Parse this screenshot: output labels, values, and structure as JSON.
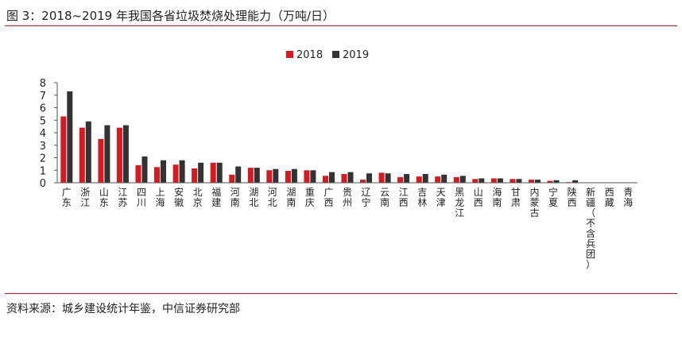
{
  "header": {
    "title": "图 3：2018~2019 年我国各省垃圾焚烧处理能力（万吨/日）"
  },
  "footer": {
    "source": "资料来源：城乡建设统计年鉴，中信证券研究部"
  },
  "colors": {
    "s2018": "#d61a22",
    "s2019": "#333333",
    "rule": "#b5121b"
  },
  "chart_data": {
    "type": "bar",
    "categories": [
      "广东",
      "浙江",
      "山东",
      "江苏",
      "四川",
      "上海",
      "安徽",
      "北京",
      "福建",
      "河南",
      "湖北",
      "河北",
      "湖南",
      "重庆",
      "广西",
      "贵州",
      "辽宁",
      "云南",
      "江西",
      "吉林",
      "天津",
      "黑龙江",
      "山西",
      "海南",
      "甘肃",
      "内蒙古",
      "宁夏",
      "陕西",
      "新疆（不含兵团）",
      "西藏",
      "青海"
    ],
    "series": [
      {
        "name": "2018",
        "values": [
          5.3,
          4.4,
          3.5,
          4.4,
          1.4,
          1.25,
          1.45,
          1.15,
          1.6,
          0.65,
          1.2,
          1.0,
          0.95,
          1.0,
          0.55,
          0.7,
          0.25,
          0.8,
          0.45,
          0.5,
          0.5,
          0.45,
          0.3,
          0.35,
          0.3,
          0.25,
          0.15,
          0.05,
          0,
          0,
          0
        ]
      },
      {
        "name": "2019",
        "values": [
          7.3,
          4.9,
          4.6,
          4.6,
          2.1,
          1.8,
          1.8,
          1.6,
          1.6,
          1.3,
          1.2,
          1.1,
          1.1,
          1.0,
          0.85,
          0.85,
          0.75,
          0.75,
          0.7,
          0.7,
          0.65,
          0.55,
          0.35,
          0.35,
          0.3,
          0.25,
          0.2,
          0.2,
          0,
          0,
          0
        ]
      }
    ],
    "ylim": [
      0,
      8
    ],
    "yticks": [
      0,
      1,
      2,
      3,
      4,
      5,
      6,
      7,
      8
    ],
    "legend_position": "top-center",
    "grid": false
  }
}
